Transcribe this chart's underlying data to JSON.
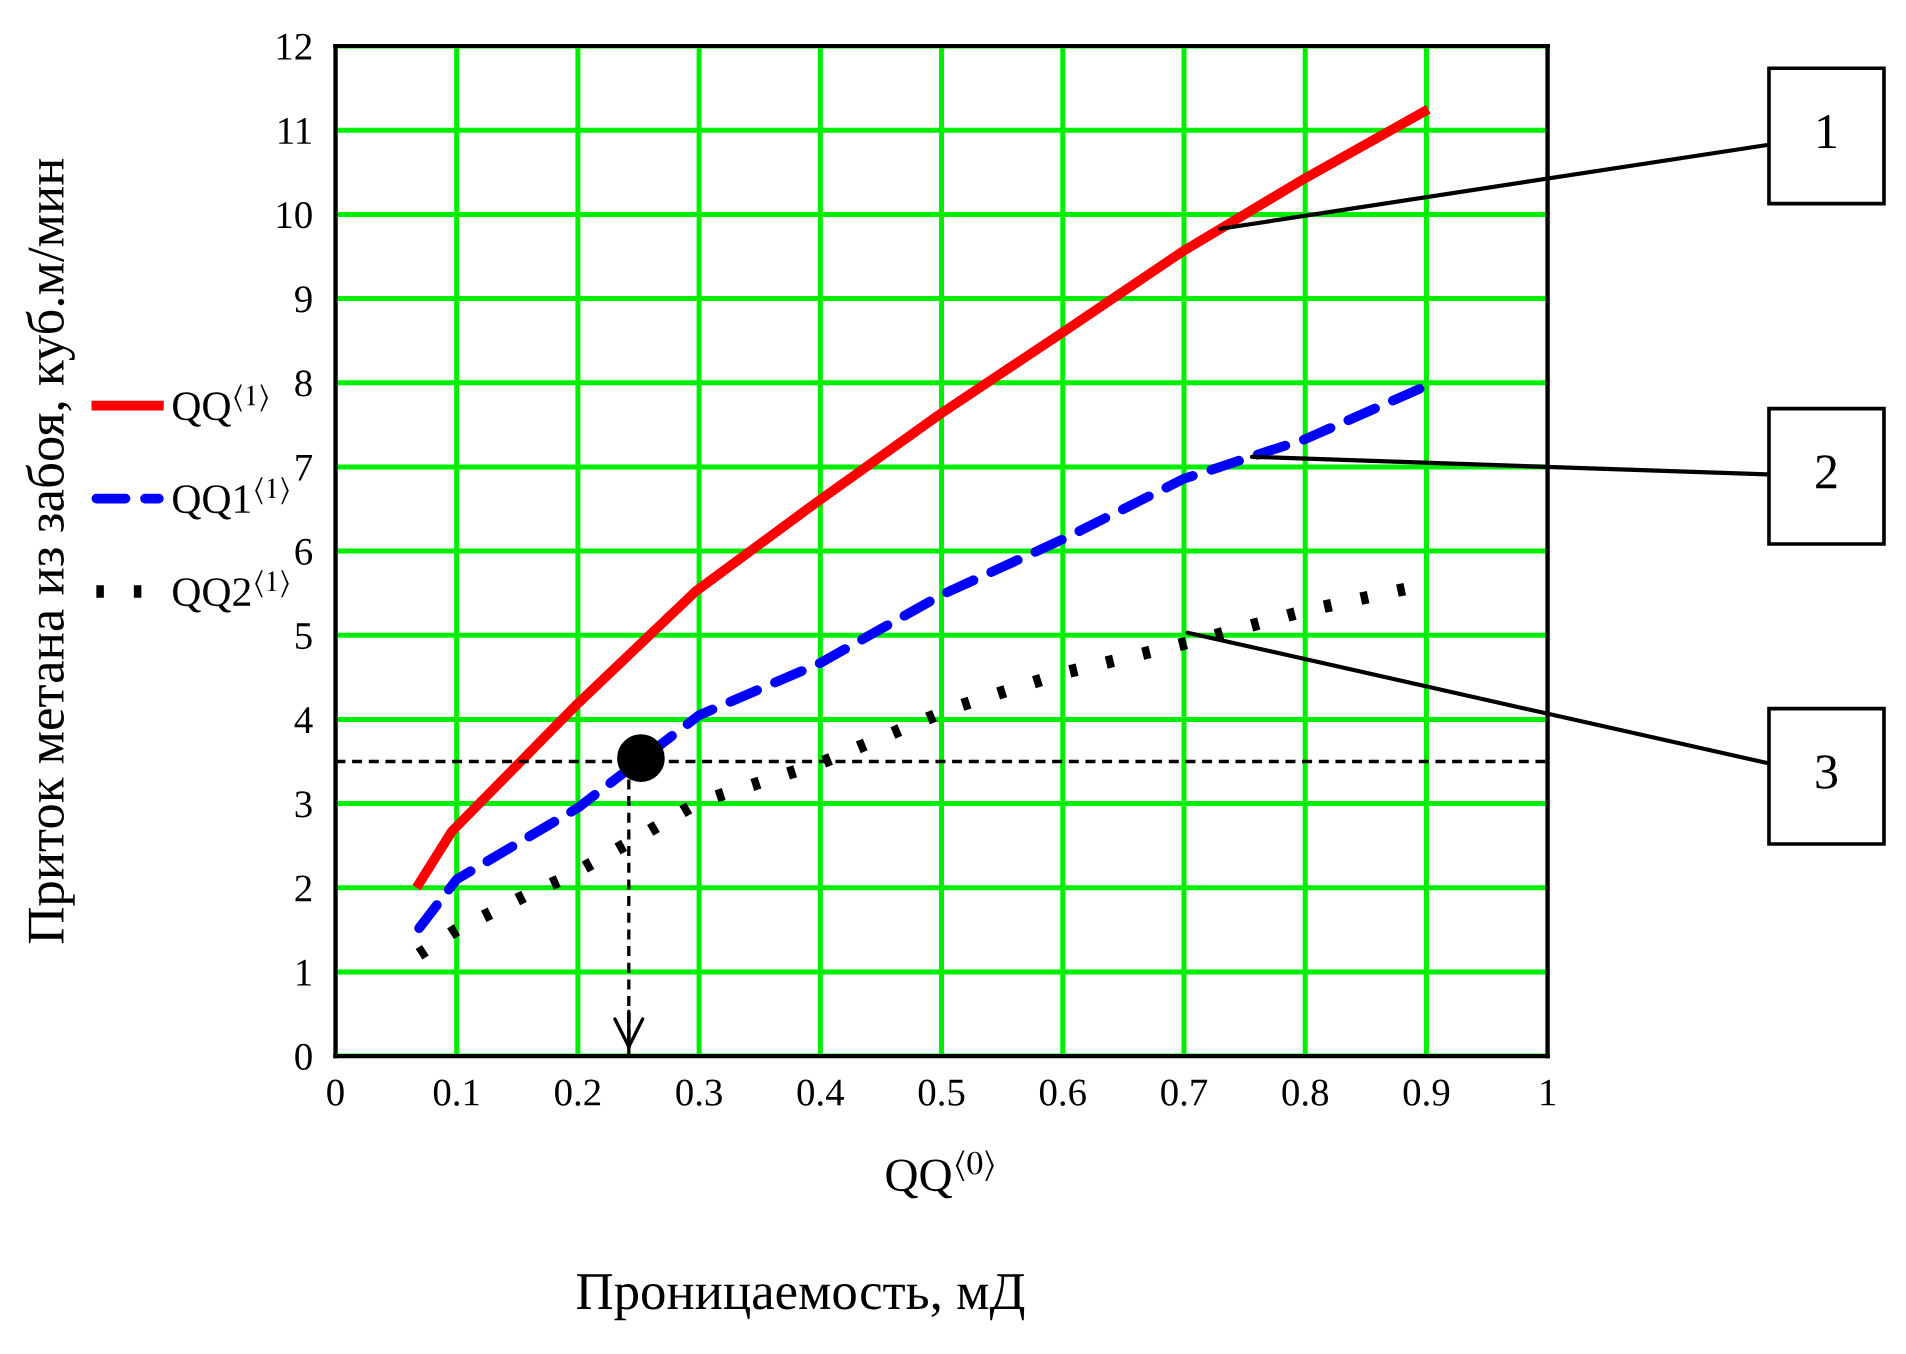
{
  "chart_data": {
    "type": "line",
    "xlabel": "QQ$^{⟨0⟩}$",
    "ylabel": "Приток метана из забоя, куб.м/мин",
    "xlim": [
      0,
      1
    ],
    "xticks": [
      0,
      0.1,
      0.2,
      0.3,
      0.4,
      0.5,
      0.6,
      0.7,
      0.8,
      0.9,
      1
    ],
    "ylim": [
      0,
      12
    ],
    "yticks": [
      0,
      1,
      2,
      3,
      4,
      5,
      6,
      7,
      8,
      9,
      10,
      11,
      12
    ],
    "grid": true,
    "legend": "left",
    "marker": "none",
    "series": [
      {
        "name": "QQ$^{⟨1⟩}$",
        "color": "#ff0000",
        "line_style": "solid",
        "x": [
          0.069,
          0.096,
          0.2,
          0.297,
          0.396,
          0.498,
          0.597,
          0.7,
          0.8,
          0.898
        ],
        "values": [
          2.05,
          2.67,
          4.19,
          5.52,
          6.57,
          7.62,
          8.57,
          9.57,
          10.43,
          11.22
        ]
      },
      {
        "name": "QQ1$^{⟨1⟩}$",
        "color": "#0000ff",
        "line_style": "dashed",
        "x": [
          0.069,
          0.1,
          0.2,
          0.3,
          0.4,
          0.5,
          0.6,
          0.7,
          0.8,
          0.898
        ],
        "values": [
          1.52,
          2.1,
          2.95,
          4.05,
          4.67,
          5.48,
          6.14,
          6.86,
          7.33,
          7.95
        ]
      },
      {
        "name": "QQ2$^{⟨1⟩}$",
        "color": "#000000",
        "line_style": "dotted",
        "x": [
          0.069,
          0.1,
          0.16,
          0.19,
          0.25,
          0.3,
          0.4,
          0.51,
          0.6,
          0.7,
          0.8,
          0.889
        ],
        "values": [
          1.21,
          1.5,
          1.93,
          2.12,
          2.6,
          3.02,
          3.48,
          4.14,
          4.55,
          4.9,
          5.29,
          5.57
        ]
      },
      {
        "type": "scatter",
        "color": "#000000",
        "marker": "circle",
        "x": [
          0.252
        ],
        "values": [
          3.54
        ]
      }
    ],
    "ref_lines": [
      {
        "axis": "y",
        "value": 3.5,
        "color": "#000000",
        "line_style": "dashed"
      },
      {
        "axis": "x",
        "value": 0.242,
        "color": "#000000",
        "line_style": "dashed"
      }
    ],
    "annotations": [
      {
        "text": "1",
        "x": 0.73,
        "y": 9.83
      },
      {
        "text": "2",
        "x": 0.756,
        "y": 7.12
      },
      {
        "text": "3",
        "x": 0.703,
        "y": 5.03
      },
      "Проницаемость, мД"
    ]
  }
}
